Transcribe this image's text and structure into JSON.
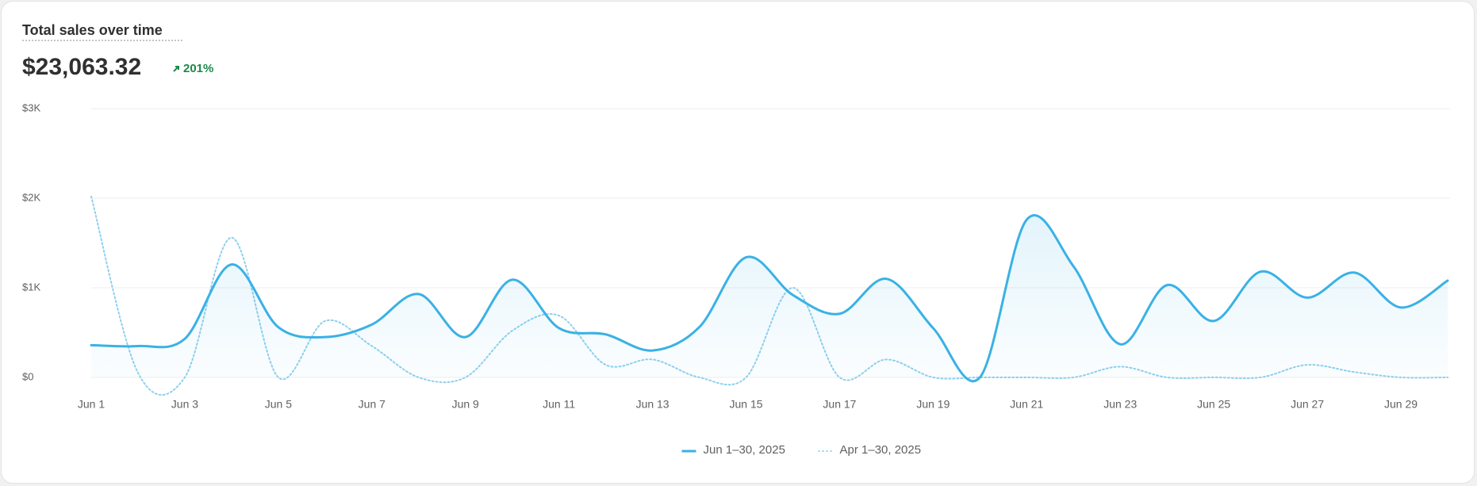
{
  "header": {
    "title": "Total sales over time",
    "total": "$23,063.32",
    "change": "201%"
  },
  "chart_data": {
    "type": "line",
    "categories": [
      "Jun 1",
      null,
      "Jun 3",
      null,
      "Jun 5",
      null,
      "Jun 7",
      null,
      "Jun 9",
      null,
      "Jun 11",
      null,
      "Jun 13",
      null,
      "Jun 15",
      null,
      "Jun 17",
      null,
      "Jun 19",
      null,
      "Jun 21",
      null,
      "Jun 23",
      null,
      "Jun 25",
      null,
      "Jun 27",
      null,
      "Jun 29",
      null
    ],
    "series": [
      {
        "name": "Jun 1–30, 2025",
        "color": "#3ab1e5",
        "line_style": "solid",
        "area": true,
        "values": [
          360,
          350,
          430,
          1260,
          560,
          450,
          590,
          930,
          450,
          1090,
          550,
          480,
          300,
          560,
          1340,
          920,
          710,
          1100,
          550,
          0,
          1760,
          1240,
          370,
          1030,
          630,
          1180,
          890,
          1170,
          780,
          1080
        ]
      },
      {
        "name": "Apr 1–30, 2025",
        "color": "#8fd0ee",
        "line_style": "dotted",
        "area": false,
        "values": [
          2020,
          50,
          0,
          1560,
          0,
          630,
          350,
          0,
          0,
          520,
          690,
          140,
          200,
          0,
          0,
          1000,
          0,
          200,
          0,
          0,
          0,
          0,
          120,
          0,
          0,
          0,
          140,
          60,
          0,
          0
        ]
      }
    ],
    "ylim": [
      0,
      3000
    ],
    "yticks": [
      {
        "value": 0,
        "label": "$0"
      },
      {
        "value": 1000,
        "label": "$1K"
      },
      {
        "value": 2000,
        "label": "$2K"
      },
      {
        "value": 3000,
        "label": "$3K"
      }
    ],
    "grid": true,
    "legend": "bottom"
  }
}
